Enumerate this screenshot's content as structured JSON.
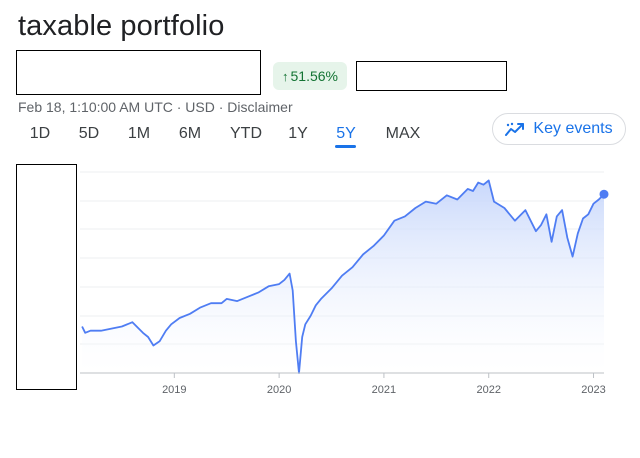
{
  "header": {
    "title": "taxable portfolio",
    "change_badge": {
      "arrow": "↑",
      "value": "51.56%"
    },
    "meta": "Feb 18, 1:10:00 AM UTC · USD · Disclaimer"
  },
  "tabs": [
    {
      "label": "1D",
      "active": false
    },
    {
      "label": "5D",
      "active": false
    },
    {
      "label": "1M",
      "active": false
    },
    {
      "label": "6M",
      "active": false
    },
    {
      "label": "YTD",
      "active": false
    },
    {
      "label": "1Y",
      "active": false
    },
    {
      "label": "5Y",
      "active": true
    },
    {
      "label": "MAX",
      "active": false
    }
  ],
  "key_events": {
    "label": "Key events",
    "icon": "trend-line-icon"
  },
  "colors": {
    "line": "#4f7df3",
    "fill_top": "#c6d6fb",
    "accent": "#1a73e8",
    "positive_bg": "#e6f4ea",
    "positive_text": "#137333"
  },
  "chart_data": {
    "type": "area",
    "x_axis": {
      "ticks": [
        "2019",
        "2020",
        "2021",
        "2022",
        "2023"
      ],
      "tick_dates": [
        2019.0,
        2020.0,
        2021.0,
        2022.0,
        2023.0
      ],
      "range": [
        2018.1,
        2023.1
      ]
    },
    "y_axis": {
      "labels_visible": false,
      "range": [
        -20,
        75
      ]
    },
    "grid": true,
    "x": [
      2018.12,
      2018.15,
      2018.2,
      2018.3,
      2018.4,
      2018.5,
      2018.6,
      2018.7,
      2018.75,
      2018.8,
      2018.86,
      2018.92,
      2018.97,
      2019.05,
      2019.15,
      2019.25,
      2019.35,
      2019.45,
      2019.5,
      2019.6,
      2019.7,
      2019.8,
      2019.9,
      2020.0,
      2020.05,
      2020.1,
      2020.13,
      2020.16,
      2020.19,
      2020.22,
      2020.25,
      2020.3,
      2020.35,
      2020.4,
      2020.5,
      2020.6,
      2020.7,
      2020.8,
      2020.9,
      2021.0,
      2021.1,
      2021.2,
      2021.3,
      2021.4,
      2021.5,
      2021.6,
      2021.7,
      2021.8,
      2021.85,
      2021.9,
      2021.95,
      2022.0,
      2022.05,
      2022.15,
      2022.25,
      2022.35,
      2022.45,
      2022.5,
      2022.55,
      2022.6,
      2022.65,
      2022.7,
      2022.75,
      2022.8,
      2022.85,
      2022.9,
      2022.95,
      2023.0,
      2023.05,
      2023.1
    ],
    "y": [
      2,
      -1,
      0,
      0,
      1,
      2,
      4,
      -1,
      -3,
      -7,
      -5,
      0,
      3,
      6,
      8,
      11,
      13,
      13,
      15,
      14,
      16,
      18,
      21,
      22,
      24,
      27,
      19,
      -5,
      -20,
      -3,
      3,
      7,
      12,
      15,
      20,
      26,
      30,
      36,
      40,
      45,
      52,
      54,
      58,
      61,
      60,
      64,
      62,
      67,
      66,
      70,
      69,
      71,
      61,
      58,
      52,
      57,
      47,
      50,
      55,
      42,
      54,
      57,
      44,
      35,
      46,
      53,
      55,
      60,
      62,
      64.5
    ]
  }
}
